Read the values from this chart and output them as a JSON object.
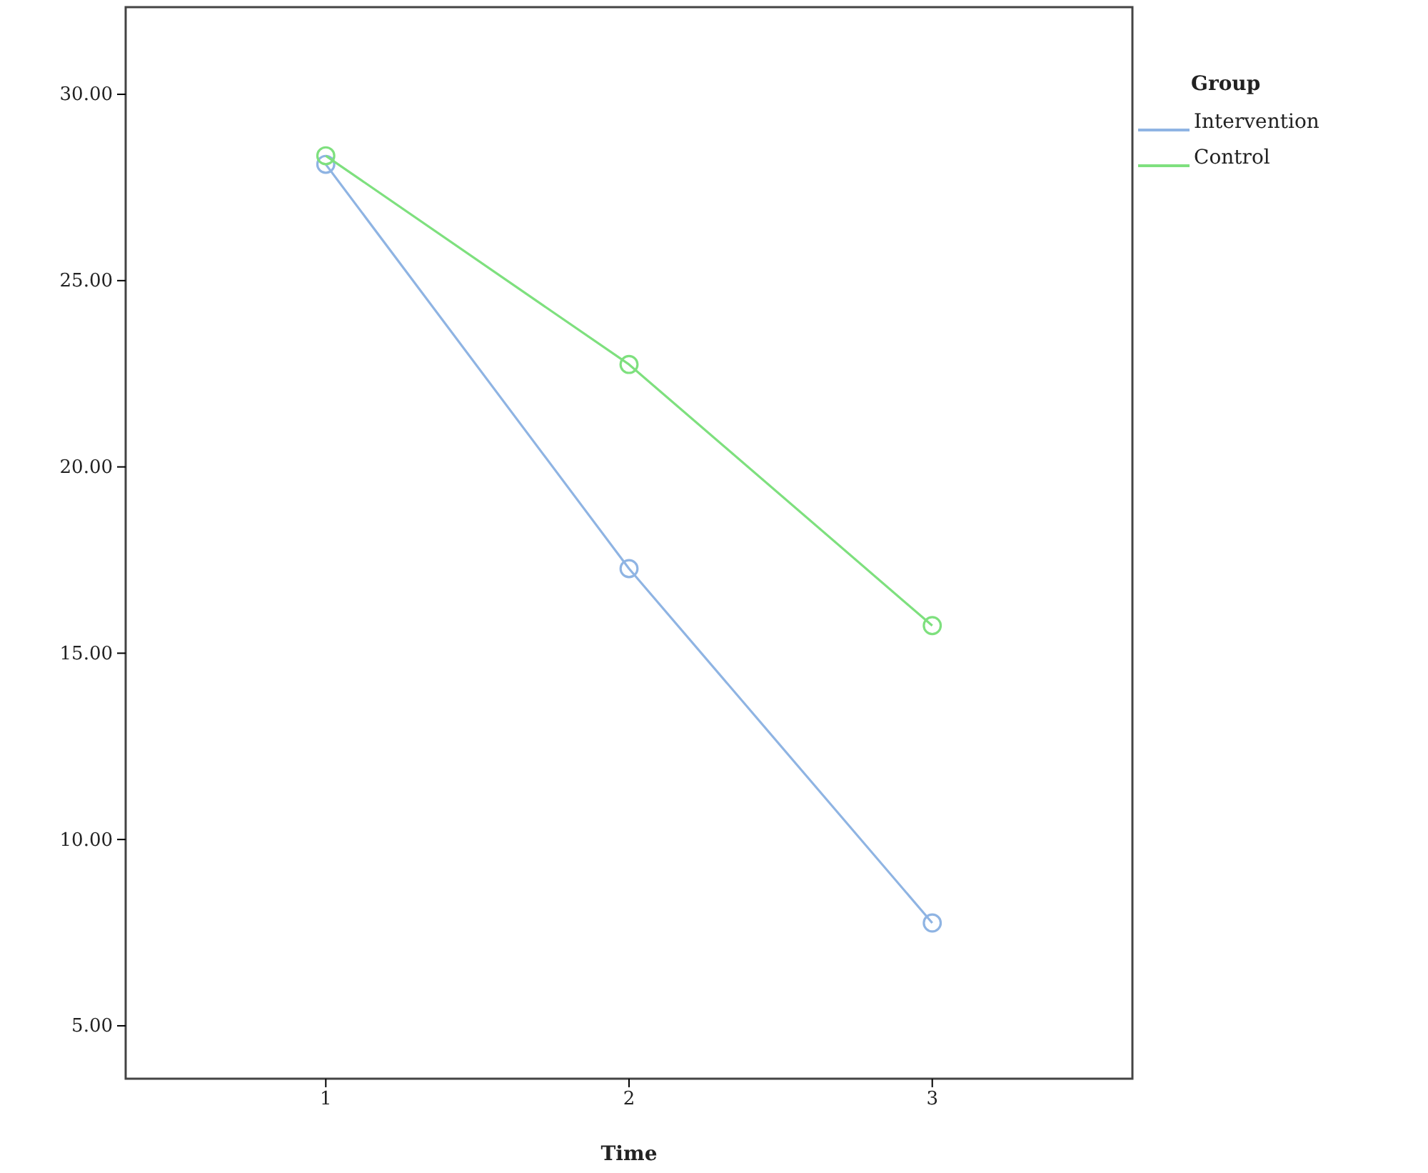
{
  "chart_data": {
    "type": "line",
    "xlabel": "Time",
    "legend_title": "Group",
    "x": [
      1,
      2,
      3
    ],
    "series": [
      {
        "name": "Intervention",
        "color": "#8fb4e3",
        "values": [
          28.12,
          17.27,
          7.76
        ]
      },
      {
        "name": "Control",
        "color": "#7ee07e",
        "values": [
          28.35,
          22.75,
          15.74
        ]
      }
    ],
    "xlim": [
      0.34,
      3.66
    ],
    "xticks": [
      1,
      2,
      3
    ],
    "ylim": [
      3.58,
      32.34
    ],
    "yticks": [
      {
        "value": 5,
        "label": "5.00"
      },
      {
        "value": 10,
        "label": "10.00"
      },
      {
        "value": 15,
        "label": "15.00"
      },
      {
        "value": 20,
        "label": "20.00"
      },
      {
        "value": 25,
        "label": "25.00"
      },
      {
        "value": 30,
        "label": "30.00"
      }
    ],
    "grid": false,
    "legend": "top right",
    "marker": "circle",
    "line_style": "solid"
  }
}
